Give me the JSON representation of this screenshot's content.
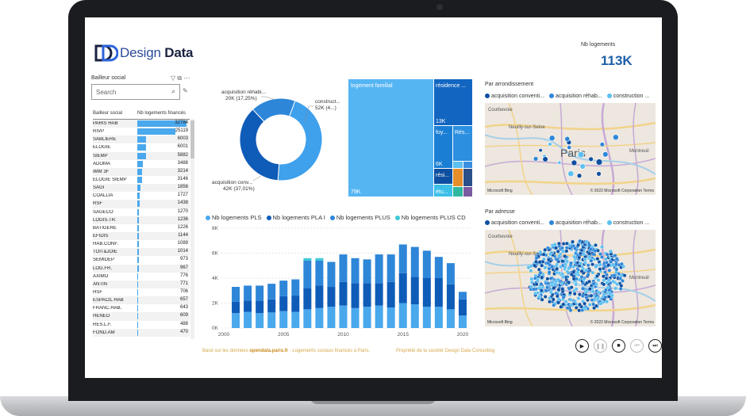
{
  "header": {
    "logo_word1": "Design",
    "logo_word2": "Data",
    "kpi_label": "Nb logements",
    "kpi_value": "113K"
  },
  "slicer": {
    "title": "Bailleur social",
    "search_placeholder": "Search",
    "col1": "Bailleur social",
    "col2": "Nb logements financés",
    "rows": [
      {
        "name": "PARIS HAB",
        "value": 32784
      },
      {
        "name": "RIVP",
        "value": 25119
      },
      {
        "name": "SABLIERE",
        "value": 6003
      },
      {
        "name": "ELOGIE",
        "value": 6001
      },
      {
        "name": "SIEMP",
        "value": 5882
      },
      {
        "name": "ADOMA",
        "value": 3488
      },
      {
        "name": "IMM 3F",
        "value": 3214
      },
      {
        "name": "ELOGIE SIEMP",
        "value": 3146
      },
      {
        "name": "SAGI",
        "value": 1856
      },
      {
        "name": "COALLIA",
        "value": 1727
      },
      {
        "name": "RSF",
        "value": 1438
      },
      {
        "name": "SAGECO",
        "value": 1270
      },
      {
        "name": "LOGIS.TR.",
        "value": 1236
      },
      {
        "name": "BATIGERE",
        "value": 1226
      },
      {
        "name": "EFIDIS",
        "value": 1144
      },
      {
        "name": "HAB.CONF.",
        "value": 1089
      },
      {
        "name": "TOIT&JOIE",
        "value": 1014
      },
      {
        "name": "SEMIDEP",
        "value": 973
      },
      {
        "name": "LOG.FR.",
        "value": 967
      },
      {
        "name": "AXIMO",
        "value": 776
      },
      {
        "name": "ANTIN",
        "value": 771
      },
      {
        "name": "HSF",
        "value": 706
      },
      {
        "name": "ESPACIL HAB",
        "value": 657
      },
      {
        "name": "FRANC.HAB.",
        "value": 643
      },
      {
        "name": "HENEO",
        "value": 609
      },
      {
        "name": "RES.L.F.",
        "value": 488
      },
      {
        "name": "FOND.AM",
        "value": 470
      }
    ]
  },
  "donut": {
    "label_rehab": "acquisition réhabi...",
    "label_rehab_val": "20K (17,25%)",
    "label_constr": "construct...",
    "label_constr_val": "52K (4...)",
    "label_conv": "acquisition conv...",
    "label_conv_val": "42K (37,01%)",
    "slices": [
      {
        "name": "construction",
        "value": 52,
        "color": "#3fa0ec"
      },
      {
        "name": "acquisition conventionnement",
        "value": 42,
        "color": "#0f5cb8"
      },
      {
        "name": "acquisition réhabilitation",
        "value": 20,
        "color": "#2e86d8"
      }
    ]
  },
  "treemap": {
    "tiles": [
      {
        "label": "logement familial",
        "value": "79K",
        "color": "#55b5f3"
      },
      {
        "label": "résidence ...",
        "value": "13K",
        "color": "#1266c1"
      },
      {
        "label": "foy...",
        "value": "6K",
        "color": "#1a7fd4"
      },
      {
        "label": "Rés...",
        "value": "",
        "color": "#2c8fe0"
      },
      {
        "label": "rési...",
        "value": "",
        "color": "#0d4fa0"
      },
      {
        "label": "étu...",
        "value": "",
        "color": "#3cc0e8"
      }
    ]
  },
  "maps": {
    "title1": "Par arrondissement",
    "title2": "Par adresse",
    "legend": [
      "acquisition conventi...",
      "acquisition réhab...",
      "construction ..."
    ],
    "legend_colors": [
      "#0d4fa0",
      "#2e86d8",
      "#5cc0f0"
    ],
    "city": "Paris",
    "place1": "Courbevoie",
    "place2": "Neuilly-sur-Seine",
    "place3": "Montreuil",
    "place4": "Clichy",
    "place5": "Boulogne-Billancourt",
    "credit": "© 2022 Microsoft Corporation  Terms",
    "bing": "Microsoft Bing"
  },
  "chart_data": {
    "type": "bar",
    "stacked": true,
    "legend": [
      "Nb logements PLS",
      "Nb logements PLA I",
      "Nb logements PLUS",
      "Nb logements PLUS CD"
    ],
    "colors": [
      "#4aa8ec",
      "#0f5cb8",
      "#2e86d8",
      "#3ec8d8"
    ],
    "x": [
      2001,
      2002,
      2003,
      2004,
      2005,
      2006,
      2007,
      2008,
      2009,
      2010,
      2011,
      2012,
      2013,
      2014,
      2015,
      2016,
      2017,
      2018,
      2019,
      2020
    ],
    "x_ticks": [
      2000,
      2005,
      2010,
      2015,
      2020
    ],
    "y_ticks": [
      "0K",
      "2K",
      "4K",
      "6K",
      "8K"
    ],
    "ylim": [
      0,
      8000
    ],
    "series": [
      {
        "name": "Nb logements PLS",
        "values": [
          1200,
          1300,
          1200,
          1250,
          1350,
          1300,
          1500,
          1600,
          1700,
          1800,
          1600,
          1700,
          1800,
          1650,
          2000,
          1900,
          1700,
          1700,
          1500,
          1000
        ]
      },
      {
        "name": "Nb logements PLA I",
        "values": [
          900,
          900,
          1000,
          1050,
          1200,
          1300,
          1700,
          1800,
          1600,
          1900,
          2000,
          1900,
          1800,
          2050,
          2400,
          2200,
          2300,
          2300,
          2000,
          1300
        ]
      },
      {
        "name": "Nb logements PLUS",
        "values": [
          1200,
          1200,
          1200,
          1250,
          1250,
          1300,
          2200,
          2000,
          2000,
          2200,
          2000,
          1900,
          2300,
          2200,
          2300,
          2400,
          2200,
          1700,
          1700,
          600
        ]
      },
      {
        "name": "Nb logements PLUS CD",
        "values": [
          0,
          0,
          0,
          0,
          0,
          0,
          200,
          200,
          0,
          0,
          0,
          0,
          0,
          0,
          0,
          0,
          0,
          0,
          0,
          0
        ]
      }
    ]
  },
  "footer": {
    "left_prefix": "Basé sur les données",
    "left_bold": "opendata.paris.fr",
    "left_suffix": "- Logements sociaux financés à Paris.",
    "right": "Propriété de la société Design Data Consulting"
  },
  "player": {
    "play": "▶",
    "pause": "❚❚",
    "stop": "■",
    "back": "⏮",
    "forward": "⏭"
  }
}
